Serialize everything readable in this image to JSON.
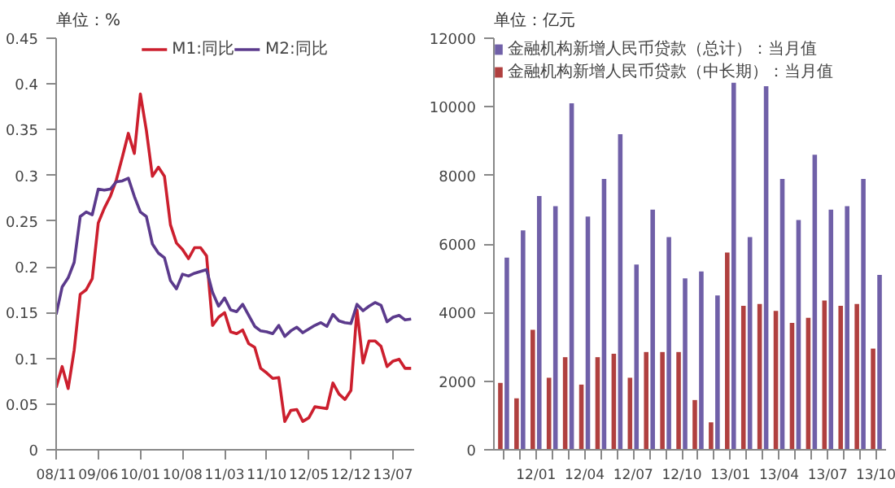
{
  "chart_data": [
    {
      "type": "line",
      "ylabel": "单位：%",
      "categories": [
        "08/11",
        null,
        null,
        null,
        null,
        null,
        null,
        "09/06",
        null,
        null,
        null,
        null,
        null,
        null,
        "10/01",
        null,
        null,
        null,
        null,
        null,
        null,
        "10/08",
        null,
        null,
        null,
        null,
        null,
        null,
        "11/03",
        null,
        null,
        null,
        null,
        null,
        null,
        "11/10",
        null,
        null,
        null,
        null,
        null,
        null,
        "12/05",
        null,
        null,
        null,
        null,
        null,
        null,
        "12/12",
        null,
        null,
        null,
        null,
        null,
        null,
        "13/07",
        null,
        null,
        null
      ],
      "series": [
        {
          "name": "M1:同比",
          "color": "#cc1f2e",
          "values": [
            0.068,
            0.091,
            0.067,
            0.109,
            0.17,
            0.175,
            0.187,
            0.248,
            0.264,
            0.277,
            0.295,
            0.32,
            0.346,
            0.324,
            0.389,
            0.349,
            0.299,
            0.309,
            0.299,
            0.246,
            0.226,
            0.219,
            0.209,
            0.221,
            0.221,
            0.212,
            0.136,
            0.145,
            0.15,
            0.129,
            0.127,
            0.131,
            0.116,
            0.112,
            0.089,
            0.084,
            0.078,
            0.079,
            0.031,
            0.043,
            0.044,
            0.031,
            0.035,
            0.047,
            0.046,
            0.045,
            0.073,
            0.061,
            0.055,
            0.065,
            0.153,
            0.095,
            0.119,
            0.119,
            0.113,
            0.091,
            0.097,
            0.099,
            0.089,
            0.089
          ]
        },
        {
          "name": "M2:同比",
          "color": "#5b3a8c",
          "values": [
            0.148,
            0.178,
            0.188,
            0.205,
            0.255,
            0.26,
            0.257,
            0.285,
            0.284,
            0.285,
            0.293,
            0.294,
            0.297,
            0.277,
            0.26,
            0.255,
            0.225,
            0.215,
            0.21,
            0.185,
            0.176,
            0.192,
            0.19,
            0.193,
            0.195,
            0.197,
            0.172,
            0.157,
            0.166,
            0.153,
            0.151,
            0.159,
            0.147,
            0.135,
            0.13,
            0.129,
            0.127,
            0.136,
            0.124,
            0.13,
            0.134,
            0.128,
            0.132,
            0.136,
            0.139,
            0.135,
            0.148,
            0.141,
            0.139,
            0.138,
            0.159,
            0.152,
            0.157,
            0.161,
            0.158,
            0.14,
            0.145,
            0.147,
            0.142,
            0.143
          ]
        }
      ],
      "ylim": [
        0,
        0.45
      ],
      "yticks": [
        0,
        0.05,
        0.1,
        0.15,
        0.2,
        0.25,
        0.3,
        0.35,
        0.4,
        0.45
      ],
      "grid": false,
      "legend": "top",
      "line_style": "solid",
      "marker": "none"
    },
    {
      "type": "bar",
      "ylabel": "单位：亿元",
      "categories": [
        null,
        null,
        "12/01",
        null,
        null,
        "12/04",
        null,
        null,
        "12/07",
        null,
        null,
        "12/10",
        null,
        null,
        "13/01",
        null,
        null,
        "13/04",
        null,
        null,
        "13/07",
        null,
        null,
        "13/10"
      ],
      "series": [
        {
          "name": "金融机构新增人民币贷款（中长期）：当月值",
          "color": "#b0403f",
          "values": [
            1950,
            1500,
            3500,
            2100,
            2700,
            1900,
            2700,
            2800,
            2100,
            2850,
            2850,
            2850,
            1450,
            800,
            5750,
            4200,
            4250,
            4050,
            3700,
            3850,
            4350,
            4200,
            4250,
            2950
          ]
        },
        {
          "name": "金融机构新增人民币贷款（总计）：当月值",
          "color": "#7060a8",
          "values": [
            5600,
            6400,
            7400,
            7100,
            10100,
            6800,
            7900,
            9200,
            5400,
            7000,
            6200,
            5000,
            5200,
            4500,
            10700,
            6200,
            10600,
            7900,
            6700,
            8600,
            7000,
            7100,
            7900,
            5100
          ]
        }
      ],
      "ylim": [
        0,
        12000
      ],
      "yticks": [
        0,
        2000,
        4000,
        6000,
        8000,
        10000,
        12000
      ],
      "grid": false,
      "legend": "top left"
    }
  ]
}
